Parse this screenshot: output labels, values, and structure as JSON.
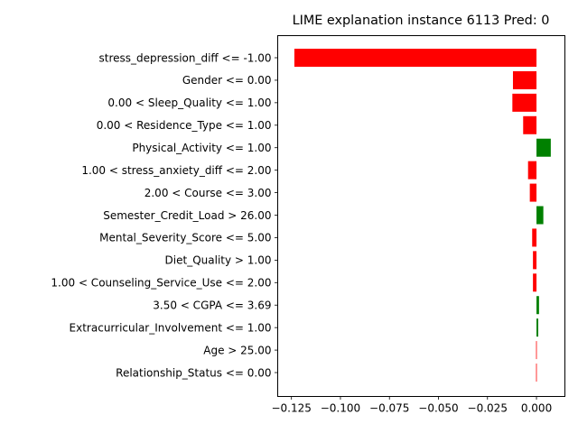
{
  "chart_data": {
    "type": "bar",
    "orientation": "horizontal",
    "title": "LIME explanation instance 6113 Pred: 0",
    "xlabel": "",
    "ylabel": "",
    "xlim": [
      -0.132,
      0.0145
    ],
    "xticks": [
      -0.125,
      -0.1,
      -0.075,
      -0.05,
      -0.025,
      0.0
    ],
    "xtick_labels": [
      "−0.125",
      "−0.100",
      "−0.075",
      "−0.050",
      "−0.025",
      "0.000"
    ],
    "grid": false,
    "legend": "none",
    "positive_color": "#008000",
    "negative_color": "#ff0000",
    "categories": [
      "stress_depression_diff <= -1.00",
      "Gender <= 0.00",
      "0.00 < Sleep_Quality <= 1.00",
      "0.00 < Residence_Type <= 1.00",
      "Physical_Activity <= 1.00",
      "1.00 < stress_anxiety_diff <= 2.00",
      "2.00 < Course <= 3.00",
      "Semester_Credit_Load > 26.00",
      "Mental_Severity_Score <= 5.00",
      "Diet_Quality > 1.00",
      "1.00 < Counseling_Service_Use <= 2.00",
      "3.50 < CGPA <= 3.69",
      "Extracurricular_Involvement <= 1.00",
      "Age > 25.00",
      "Relationship_Status <= 0.00"
    ],
    "values": [
      -0.1235,
      -0.012,
      -0.0123,
      -0.0068,
      0.0073,
      -0.0043,
      -0.0034,
      0.0035,
      -0.0022,
      -0.0018,
      -0.0018,
      0.0013,
      0.0009,
      -0.0002,
      -0.0002
    ]
  }
}
